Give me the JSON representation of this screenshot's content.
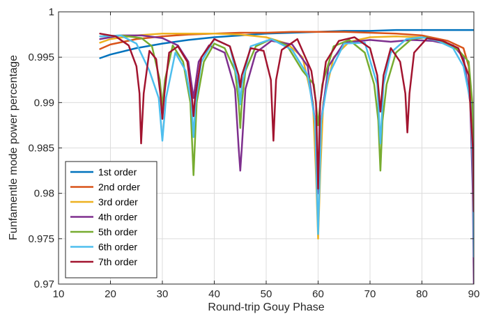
{
  "chart_data": {
    "type": "line",
    "title": "",
    "xlabel": "Round-trip Gouy Phase",
    "ylabel": "Funfamentle mode power percentage",
    "xlim": [
      10,
      90
    ],
    "ylim": [
      0.97,
      1.0
    ],
    "xticks": [
      "10",
      "20",
      "30",
      "40",
      "50",
      "60",
      "70",
      "80",
      "90"
    ],
    "yticks": [
      "0.97",
      "0.975",
      "0.98",
      "0.985",
      "0.99",
      "0.995",
      "1"
    ],
    "grid": true,
    "legend_position": "lower-left",
    "series": [
      {
        "name": "1st order",
        "color": "#0072BD",
        "x": [
          18,
          20,
          25,
          30,
          35,
          40,
          45,
          50,
          55,
          60,
          65,
          70,
          75,
          80,
          85,
          88,
          90
        ],
        "y": [
          0.9949,
          0.9953,
          0.996,
          0.9965,
          0.9969,
          0.9972,
          0.9974,
          0.9976,
          0.9977,
          0.9978,
          0.9979,
          0.9979,
          0.998,
          0.998,
          0.998,
          0.998,
          0.998
        ]
      },
      {
        "name": "2nd order",
        "color": "#D95319",
        "x": [
          18,
          20,
          25,
          30,
          35,
          40,
          45,
          50,
          55,
          60,
          65,
          70,
          75,
          80,
          85,
          88,
          89,
          89.6,
          90
        ],
        "y": [
          0.9959,
          0.9964,
          0.997,
          0.9973,
          0.9975,
          0.9976,
          0.9977,
          0.9977,
          0.9978,
          0.9978,
          0.9978,
          0.9977,
          0.9976,
          0.9974,
          0.9968,
          0.996,
          0.994,
          0.99,
          0.978
        ]
      },
      {
        "name": "3rd order",
        "color": "#EDB120",
        "x": [
          18,
          20,
          25,
          30,
          35,
          40,
          45,
          50,
          54,
          57,
          59,
          59.6,
          60,
          60.4,
          61,
          63,
          66,
          70,
          75,
          80,
          84,
          87,
          89,
          89.7,
          90
        ],
        "y": [
          0.9966,
          0.997,
          0.9974,
          0.9976,
          0.9976,
          0.9976,
          0.9975,
          0.9972,
          0.9965,
          0.995,
          0.99,
          0.982,
          0.975,
          0.982,
          0.99,
          0.995,
          0.9967,
          0.9972,
          0.9973,
          0.9972,
          0.9968,
          0.996,
          0.993,
          0.985,
          0.978
        ]
      },
      {
        "name": "4th order",
        "color": "#7E2F8E",
        "x": [
          18,
          22,
          26,
          30,
          33,
          35,
          36,
          37,
          39,
          42,
          44,
          44.7,
          45,
          45.3,
          46,
          48,
          51,
          55,
          58,
          59.4,
          60,
          60.6,
          62,
          65,
          70,
          74,
          78,
          82,
          86,
          88,
          89.3,
          89.8,
          90
        ],
        "y": [
          0.997,
          0.9974,
          0.9974,
          0.9971,
          0.9963,
          0.9945,
          0.9905,
          0.9945,
          0.9963,
          0.9955,
          0.9915,
          0.985,
          0.9825,
          0.985,
          0.9915,
          0.9955,
          0.9968,
          0.9964,
          0.994,
          0.988,
          0.98,
          0.988,
          0.994,
          0.9966,
          0.9969,
          0.9967,
          0.9969,
          0.9968,
          0.9963,
          0.995,
          0.99,
          0.98,
          0.97
        ]
      },
      {
        "name": "5th order",
        "color": "#77AC30",
        "x": [
          18,
          22,
          26,
          28,
          29.5,
          30,
          30.5,
          32,
          34,
          35.4,
          36,
          36.6,
          38,
          40,
          42,
          44,
          44.7,
          45,
          45.3,
          46,
          48,
          51,
          54,
          57,
          59.2,
          60,
          60.8,
          63,
          66,
          69,
          70.8,
          71.6,
          72,
          72.4,
          73.2,
          75,
          78,
          81,
          84,
          87,
          89,
          89.7,
          90
        ],
        "y": [
          0.9973,
          0.9974,
          0.9971,
          0.9962,
          0.9925,
          0.9895,
          0.9925,
          0.9963,
          0.9945,
          0.99,
          0.982,
          0.99,
          0.9945,
          0.9965,
          0.996,
          0.9935,
          0.99,
          0.9872,
          0.99,
          0.9935,
          0.9962,
          0.997,
          0.9963,
          0.9935,
          0.992,
          0.9875,
          0.992,
          0.9962,
          0.9969,
          0.9955,
          0.992,
          0.988,
          0.9825,
          0.988,
          0.992,
          0.9955,
          0.997,
          0.9972,
          0.9966,
          0.9958,
          0.9945,
          0.99,
          0.976
        ]
      },
      {
        "name": "6th order",
        "color": "#4DBEEE",
        "x": [
          18,
          22,
          25,
          27.5,
          29.3,
          30,
          30.7,
          32.5,
          34.5,
          35.6,
          36,
          36.4,
          37.5,
          40,
          43,
          44.7,
          45,
          45.3,
          47,
          51,
          55,
          58,
          59.4,
          60,
          60.6,
          62,
          65,
          69,
          71.4,
          72,
          72.6,
          74,
          77,
          80,
          83,
          86,
          88,
          89.4,
          89.9,
          90
        ],
        "y": [
          0.9973,
          0.9974,
          0.9965,
          0.9935,
          0.9905,
          0.9858,
          0.9905,
          0.9955,
          0.9935,
          0.99,
          0.9862,
          0.99,
          0.9945,
          0.997,
          0.9962,
          0.992,
          0.9898,
          0.992,
          0.9962,
          0.997,
          0.9958,
          0.993,
          0.988,
          0.9755,
          0.988,
          0.993,
          0.9965,
          0.9966,
          0.992,
          0.9855,
          0.992,
          0.9955,
          0.997,
          0.9972,
          0.9968,
          0.996,
          0.994,
          0.99,
          0.98,
          0.973
        ]
      },
      {
        "name": "7th order",
        "color": "#A2142F",
        "x": [
          18,
          21,
          23.5,
          25,
          25.6,
          25.9,
          26.4,
          27.5,
          28.8,
          29.6,
          30,
          30.4,
          31.3,
          33,
          34.8,
          35.7,
          36,
          36.3,
          37.5,
          40,
          43,
          44.7,
          45,
          45.3,
          47,
          49.5,
          50.9,
          51.4,
          51.9,
          53,
          56,
          58.7,
          59.6,
          60,
          60.4,
          61.5,
          64,
          67,
          70,
          71.4,
          72,
          72.6,
          74,
          75.8,
          76.8,
          77.2,
          77.6,
          78.5,
          81,
          84,
          87,
          89,
          89.8,
          90
        ],
        "y": [
          0.9976,
          0.9973,
          0.9963,
          0.994,
          0.991,
          0.9855,
          0.991,
          0.9957,
          0.9948,
          0.991,
          0.9882,
          0.991,
          0.9955,
          0.9962,
          0.9945,
          0.9905,
          0.9885,
          0.9905,
          0.995,
          0.997,
          0.9962,
          0.993,
          0.9917,
          0.993,
          0.996,
          0.9957,
          0.9925,
          0.9858,
          0.9925,
          0.9958,
          0.997,
          0.9935,
          0.99,
          0.9805,
          0.99,
          0.9945,
          0.9968,
          0.9972,
          0.996,
          0.993,
          0.989,
          0.993,
          0.996,
          0.9945,
          0.991,
          0.9867,
          0.991,
          0.9955,
          0.9971,
          0.9968,
          0.996,
          0.993,
          0.985,
          0.978
        ]
      }
    ]
  }
}
